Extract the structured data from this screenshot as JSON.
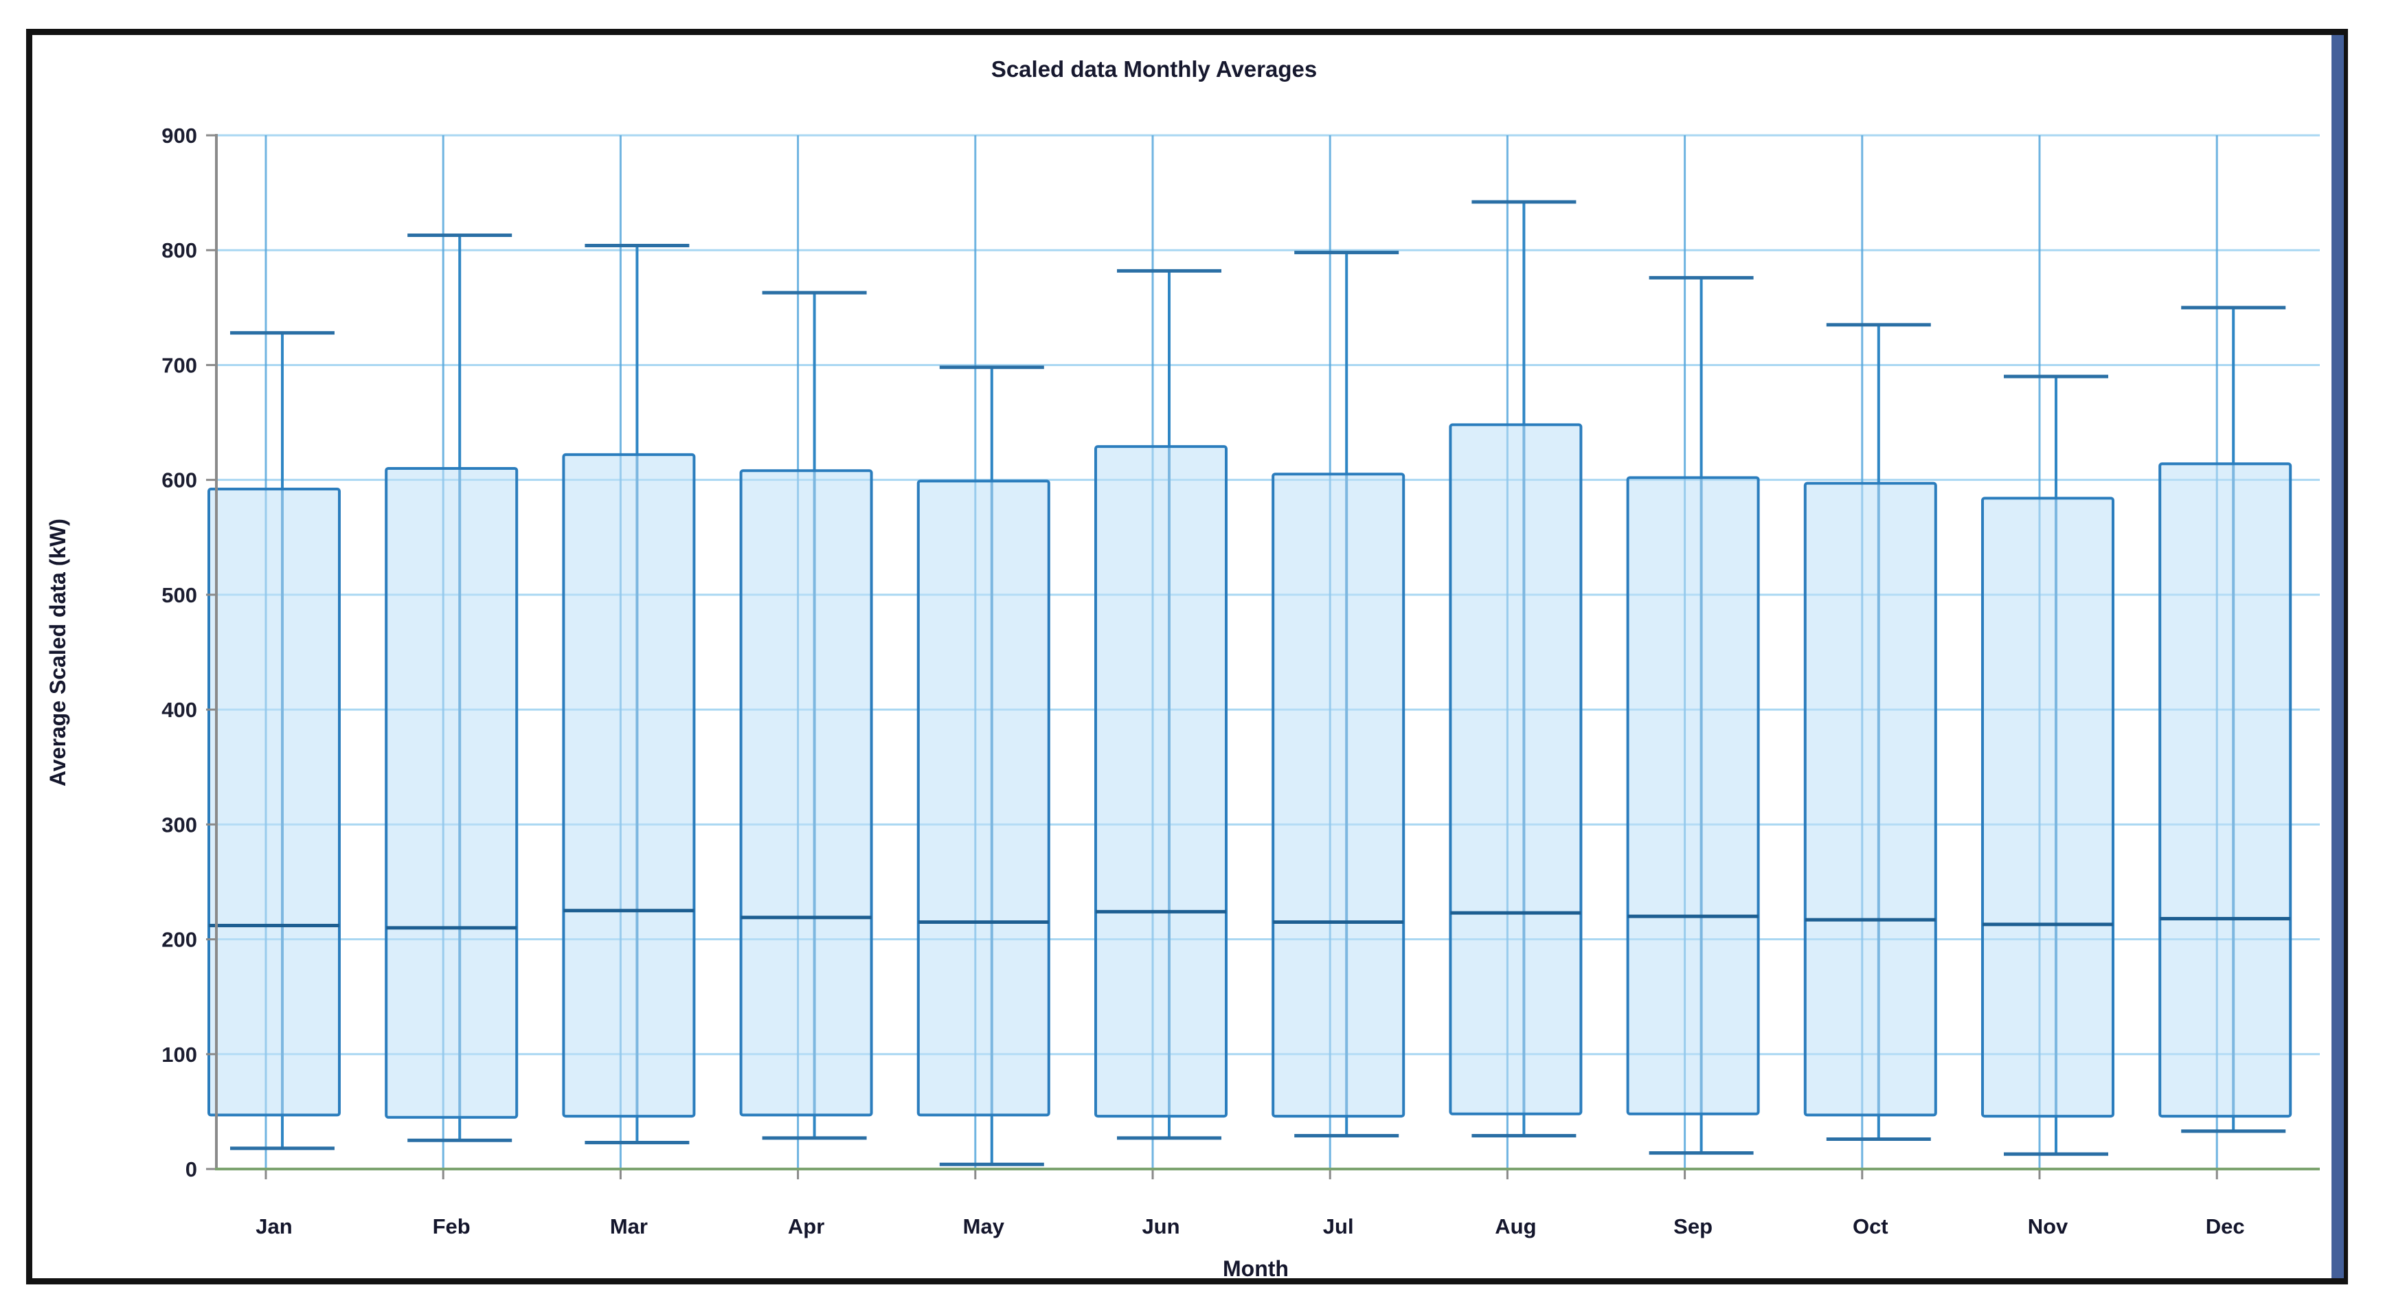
{
  "window": {
    "frame_border_color": "#121212",
    "right_edge_strip_color": "#44609a",
    "background_color": "#ffffff"
  },
  "chart_data": {
    "type": "boxplot",
    "title": "Scaled data Monthly Averages",
    "xlabel": "Month",
    "ylabel": "Average Scaled data (kW)",
    "ylim": [
      0,
      900
    ],
    "ytick_step": 100,
    "grid": true,
    "legend": "none",
    "categories": [
      "Jan",
      "Feb",
      "Mar",
      "Apr",
      "May",
      "Jun",
      "Jul",
      "Aug",
      "Sep",
      "Oct",
      "Nov",
      "Dec"
    ],
    "series": [
      {
        "label": "Jan",
        "min": 18,
        "q1": 47,
        "median": 212,
        "q3": 592,
        "max": 728
      },
      {
        "label": "Feb",
        "min": 25,
        "q1": 45,
        "median": 210,
        "q3": 610,
        "max": 813
      },
      {
        "label": "Mar",
        "min": 23,
        "q1": 46,
        "median": 225,
        "q3": 622,
        "max": 804
      },
      {
        "label": "Apr",
        "min": 27,
        "q1": 47,
        "median": 219,
        "q3": 608,
        "max": 763
      },
      {
        "label": "May",
        "min": 4,
        "q1": 47,
        "median": 215,
        "q3": 599,
        "max": 698
      },
      {
        "label": "Jun",
        "min": 27,
        "q1": 46,
        "median": 224,
        "q3": 629,
        "max": 782
      },
      {
        "label": "Jul",
        "min": 29,
        "q1": 46,
        "median": 215,
        "q3": 605,
        "max": 798
      },
      {
        "label": "Aug",
        "min": 29,
        "q1": 48,
        "median": 223,
        "q3": 648,
        "max": 842
      },
      {
        "label": "Sep",
        "min": 14,
        "q1": 48,
        "median": 220,
        "q3": 602,
        "max": 776
      },
      {
        "label": "Oct",
        "min": 26,
        "q1": 47,
        "median": 217,
        "q3": 597,
        "max": 735
      },
      {
        "label": "Nov",
        "min": 13,
        "q1": 46,
        "median": 213,
        "q3": 584,
        "max": 690
      },
      {
        "label": "Dec",
        "min": 33,
        "q1": 46,
        "median": 218,
        "q3": 614,
        "max": 750
      }
    ],
    "colors": {
      "h_gridline": "#a9d7f2",
      "v_gridline": "#58a8dc",
      "box_stroke": "#2b7dbd",
      "box_fill": "#bde0f8",
      "median_line": "#1d5e91",
      "whisker_line": "#2f86c4",
      "whisker_cap": "#2a6fa5",
      "y_axis_line": "#8a8a8a",
      "x_axis_line": "#7ca36f",
      "tick_mark": "#8a8a8a"
    }
  }
}
